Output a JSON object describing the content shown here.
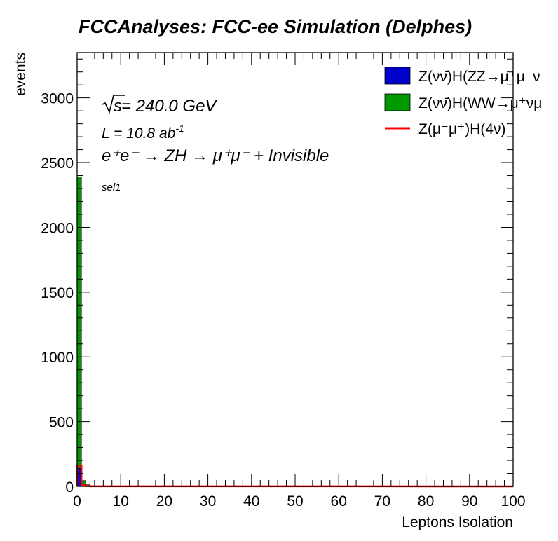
{
  "title": "FCCAnalyses: FCC-ee Simulation (Delphes)",
  "annotations": {
    "sqrt_s": "s",
    "energy": " = 240.0 GeV",
    "lumi_main": "L = 10.8 ab",
    "lumi_exp": "-1",
    "process": "e⁺e⁻ → ZH → μ⁺μ⁻ + Invisible",
    "selection": "sel1"
  },
  "chart_data": {
    "type": "bar",
    "xlabel": "Leptons Isolation",
    "ylabel": "events",
    "xlim": [
      0,
      100
    ],
    "ylim": [
      0,
      3350
    ],
    "grid": false,
    "legend_placement": "top-right",
    "x_ticks": [
      "0",
      "10",
      "20",
      "30",
      "40",
      "50",
      "60",
      "70",
      "80",
      "90",
      "100"
    ],
    "y_ticks": [
      "0",
      "500",
      "1000",
      "1500",
      "2000",
      "2500",
      "3000"
    ],
    "bin_width": 1,
    "series": [
      {
        "name": "Z(νν̄)H(ZZ→μ⁺μ⁻ν",
        "style": "stacked-fill",
        "color": "#0000cc",
        "bin_start": [
          0,
          1,
          2,
          3
        ],
        "values": [
          140,
          20,
          5,
          2
        ]
      },
      {
        "name": "Z(νν̄)H(WW→μ⁺νμ",
        "style": "stacked-fill",
        "color": "#009900",
        "bin_start": [
          0,
          1,
          2,
          3
        ],
        "values": [
          2250,
          25,
          8,
          3
        ]
      },
      {
        "name": "Z(μ⁻μ⁺)H(4ν)",
        "style": "line",
        "color": "#ff0000",
        "bin_start": [
          0,
          1,
          2,
          3
        ],
        "values": [
          160,
          10,
          3,
          1
        ]
      }
    ]
  }
}
